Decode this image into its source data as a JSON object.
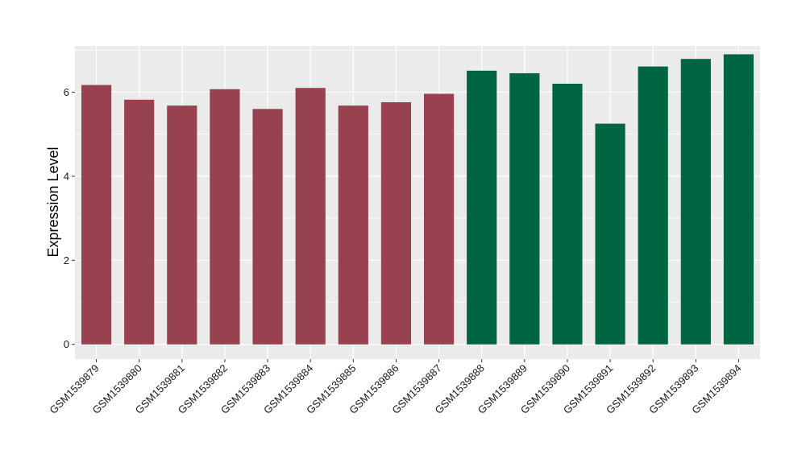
{
  "chart_data": {
    "type": "bar",
    "title": "",
    "xlabel": "",
    "ylabel": "Expression Level",
    "ylim": [
      -0.35,
      7.1
    ],
    "yticks": [
      0,
      2,
      4,
      6
    ],
    "grid": true,
    "legend": "none",
    "categories": [
      "GSM1539879",
      "GSM1539880",
      "GSM1539881",
      "GSM1539882",
      "GSM1539883",
      "GSM1539884",
      "GSM1539885",
      "GSM1539886",
      "GSM1539887",
      "GSM1539888",
      "GSM1539889",
      "GSM1539890",
      "GSM1539891",
      "GSM1539892",
      "GSM1539893",
      "GSM1539894"
    ],
    "values": [
      6.17,
      5.82,
      5.68,
      6.07,
      5.6,
      6.1,
      5.68,
      5.76,
      5.96,
      6.51,
      6.45,
      6.2,
      5.25,
      6.61,
      6.79,
      6.9
    ],
    "bar_colors": [
      "#98414f",
      "#98414f",
      "#98414f",
      "#98414f",
      "#98414f",
      "#98414f",
      "#98414f",
      "#98414f",
      "#98414f",
      "#006642",
      "#006642",
      "#006642",
      "#006642",
      "#006642",
      "#006642",
      "#006642"
    ],
    "panel_background": "#ebebeb",
    "grid_color": "#ffffff"
  }
}
